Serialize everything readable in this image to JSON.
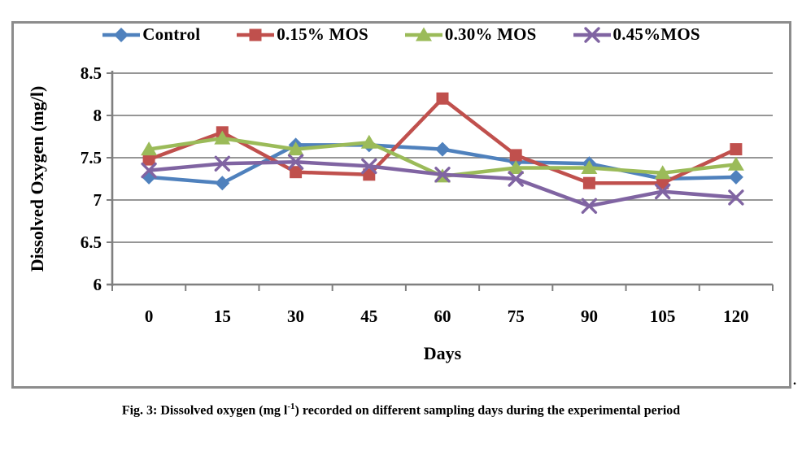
{
  "figure": {
    "caption_prefix": "Fig. 3: Dissolved oxygen (mg l",
    "caption_sup": "-1",
    "caption_suffix": ") recorded on different sampling days during the experimental period",
    "trailing_period": "."
  },
  "chart_data": {
    "type": "line",
    "title": "",
    "xlabel": "Days",
    "ylabel": "Dissolved Oxygen (mg/l)",
    "categories": [
      0,
      15,
      30,
      45,
      60,
      75,
      90,
      105,
      120
    ],
    "x_tick_labels": [
      "0",
      "15",
      "30",
      "45",
      "60",
      "75",
      "90",
      "105",
      "120"
    ],
    "y_tick_labels": [
      "8.5",
      "8",
      "7.5",
      "7",
      "6.5",
      "6"
    ],
    "ylim": [
      6,
      8.5
    ],
    "y_step": 0.5,
    "grid": true,
    "legend_position": "top",
    "series": [
      {
        "name": "Control",
        "marker": "diamond",
        "color": "#4f81bd",
        "values": [
          7.27,
          7.2,
          7.65,
          7.65,
          7.6,
          7.45,
          7.43,
          7.25,
          7.27
        ]
      },
      {
        "name": "0.15% MOS",
        "marker": "square",
        "color": "#c0504d",
        "values": [
          7.48,
          7.8,
          7.33,
          7.3,
          8.2,
          7.53,
          7.2,
          7.2,
          7.6
        ]
      },
      {
        "name": "0.30% MOS",
        "marker": "triangle",
        "color": "#9bbb59",
        "values": [
          7.6,
          7.73,
          7.6,
          7.68,
          7.28,
          7.38,
          7.38,
          7.32,
          7.42
        ]
      },
      {
        "name": "0.45%MOS",
        "marker": "x",
        "color": "#8064a2",
        "values": [
          7.35,
          7.43,
          7.45,
          7.4,
          7.3,
          7.25,
          6.93,
          7.1,
          7.03
        ]
      }
    ],
    "grid_color": "#878787",
    "axis_color": "#7f7f7f"
  }
}
